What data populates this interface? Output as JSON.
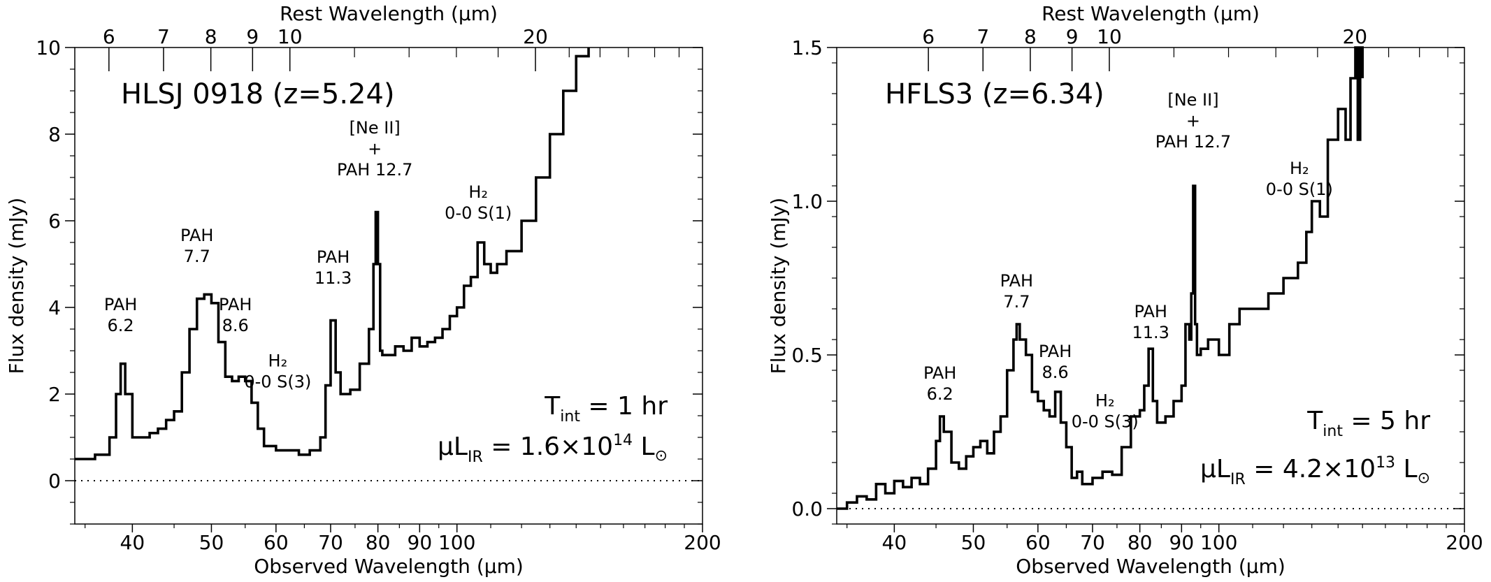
{
  "chart_data": [
    {
      "type": "line",
      "title": "HLSJ 0918 (z=5.24)",
      "xlabel": "Observed Wavelength (μm)",
      "ylabel": "Flux density (mJy)",
      "top_xlabel": "Rest Wavelength (μm)",
      "xscale": "log",
      "xlim": [
        34,
        200
      ],
      "ylim": [
        -1,
        10
      ],
      "xticks": [
        40,
        50,
        60,
        70,
        80,
        90,
        100,
        200
      ],
      "yticks": [
        0,
        2,
        4,
        6,
        8,
        10
      ],
      "top_ticks": [
        6,
        7,
        8,
        9,
        10,
        20
      ],
      "redshift": 5.24,
      "zero_line": "dotted",
      "annotations": [
        {
          "lines": [
            "PAH",
            "6.2"
          ],
          "x": 38.7,
          "y": 3.45
        },
        {
          "lines": [
            "PAH",
            "7.7"
          ],
          "x": 48.0,
          "y": 5.05
        },
        {
          "lines": [
            "PAH",
            "8.6"
          ],
          "x": 53.5,
          "y": 3.45
        },
        {
          "lines": [
            "H₂",
            "0-0 S(3)"
          ],
          "x": 60.3,
          "y": 2.15
        },
        {
          "lines": [
            "PAH",
            "11.3"
          ],
          "x": 70.5,
          "y": 4.55
        },
        {
          "lines": [
            "[Ne II]",
            "+",
            "PAH 12.7"
          ],
          "x": 79.3,
          "y": 7.05
        },
        {
          "lines": [
            "H₂",
            "0-0 S(1)"
          ],
          "x": 106.2,
          "y": 6.05
        }
      ],
      "info": {
        "tint": "T",
        "tint_sub": "int",
        "tint_value": " = 1 hr",
        "lum_prefix": "μL",
        "lum_sub": "IR",
        "lum_mid": " = 1.6×10",
        "lum_exp": "14",
        "lum_unit": " L",
        "sun_symbol": "⊙"
      },
      "series": [
        {
          "x": [
            34,
            36,
            37.5,
            38.2,
            38.7,
            39.2,
            40,
            41,
            42,
            43,
            44,
            45,
            46,
            47,
            48,
            49,
            50,
            51,
            52,
            53,
            54,
            55,
            56,
            57,
            58,
            60,
            62,
            64,
            66,
            68,
            69,
            70,
            71,
            72,
            74,
            76,
            78,
            79,
            79.5,
            80,
            80.5,
            81,
            82,
            84,
            86,
            88,
            90,
            92,
            94,
            96,
            98,
            100,
            102,
            104,
            106,
            108,
            110,
            112,
            115,
            120,
            125,
            130,
            135,
            140,
            145
          ],
          "y": [
            0.5,
            0.6,
            1.0,
            2.0,
            2.7,
            2.0,
            1.0,
            1.0,
            1.1,
            1.2,
            1.4,
            1.6,
            2.5,
            3.5,
            4.2,
            4.3,
            4.1,
            3.2,
            2.4,
            2.3,
            2.4,
            2.3,
            1.8,
            1.2,
            0.8,
            0.7,
            0.7,
            0.6,
            0.7,
            1.0,
            2.2,
            3.7,
            2.5,
            2.0,
            2.1,
            2.7,
            3.5,
            5.0,
            6.2,
            5.0,
            3.0,
            2.9,
            2.9,
            3.1,
            3.0,
            3.3,
            3.1,
            3.2,
            3.3,
            3.5,
            3.8,
            4.0,
            4.5,
            4.7,
            5.5,
            5.0,
            4.8,
            5.0,
            5.3,
            6.0,
            7.0,
            8.0,
            9.0,
            9.8,
            10
          ]
        }
      ]
    },
    {
      "type": "line",
      "title": "HFLS3 (z=6.34)",
      "xlabel": "Observed Wavelength (μm)",
      "ylabel": "Flux density (mJy)",
      "top_xlabel": "Rest Wavelength (μm)",
      "xscale": "log",
      "xlim": [
        34,
        200
      ],
      "ylim": [
        -0.05,
        1.5
      ],
      "xticks": [
        40,
        50,
        60,
        70,
        80,
        90,
        100,
        200
      ],
      "yticks": [
        0.0,
        0.5,
        1.0,
        1.5
      ],
      "ytick_labels": [
        "0.0",
        "0.5",
        "1.0",
        "1.5"
      ],
      "top_ticks": [
        6,
        7,
        8,
        9,
        10,
        20
      ],
      "redshift": 6.34,
      "zero_line": "dotted",
      "annotations": [
        {
          "lines": [
            "PAH",
            "6.2"
          ],
          "x": 45.5,
          "y": 0.355
        },
        {
          "lines": [
            "PAH",
            "7.7"
          ],
          "x": 56.5,
          "y": 0.655
        },
        {
          "lines": [
            "PAH",
            "8.6"
          ],
          "x": 63.0,
          "y": 0.425
        },
        {
          "lines": [
            "H₂",
            "0-0 S(3)"
          ],
          "x": 72.5,
          "y": 0.265
        },
        {
          "lines": [
            "PAH",
            "11.3"
          ],
          "x": 82.5,
          "y": 0.555
        },
        {
          "lines": [
            "[Ne II]",
            "+",
            "PAH 12.7"
          ],
          "x": 93.0,
          "y": 1.175
        },
        {
          "lines": [
            "H₂",
            "0-0 S(1)"
          ],
          "x": 125.5,
          "y": 1.02
        }
      ],
      "info": {
        "tint": "T",
        "tint_sub": "int",
        "tint_value": " = 5 hr",
        "lum_prefix": "μL",
        "lum_sub": "IR",
        "lum_mid": " = 4.2×10",
        "lum_exp": "13",
        "lum_unit": " L",
        "sun_symbol": "⊙"
      },
      "series": [
        {
          "x": [
            34,
            35,
            36,
            37,
            38,
            39,
            40,
            41,
            42,
            43,
            44,
            45,
            45.5,
            46,
            47,
            48,
            49,
            50,
            51,
            52,
            53,
            54,
            55,
            56,
            56.5,
            57,
            58,
            59,
            60,
            61,
            62,
            63,
            64,
            65,
            66,
            67,
            68,
            70,
            72,
            74,
            76,
            78,
            80,
            81,
            82,
            83,
            84,
            86,
            88,
            90,
            91,
            92,
            92.5,
            93,
            93.5,
            94,
            95,
            97,
            100,
            103,
            106,
            110,
            115,
            120,
            125,
            128,
            130,
            133,
            136,
            140,
            143,
            145,
            147,
            148,
            149,
            150
          ],
          "y": [
            0.0,
            0.02,
            0.04,
            0.03,
            0.08,
            0.05,
            0.09,
            0.07,
            0.1,
            0.08,
            0.13,
            0.22,
            0.3,
            0.25,
            0.15,
            0.13,
            0.17,
            0.2,
            0.22,
            0.18,
            0.25,
            0.3,
            0.45,
            0.55,
            0.6,
            0.55,
            0.5,
            0.38,
            0.35,
            0.32,
            0.3,
            0.38,
            0.28,
            0.2,
            0.1,
            0.12,
            0.08,
            0.1,
            0.12,
            0.11,
            0.2,
            0.3,
            0.32,
            0.4,
            0.52,
            0.35,
            0.28,
            0.3,
            0.35,
            0.4,
            0.6,
            0.55,
            0.7,
            1.05,
            0.6,
            0.5,
            0.52,
            0.55,
            0.5,
            0.6,
            0.65,
            0.65,
            0.7,
            0.75,
            0.8,
            0.9,
            1.0,
            0.95,
            1.2,
            1.3,
            1.2,
            1.4,
            1.55,
            1.2,
            1.6,
            1.4
          ]
        }
      ]
    }
  ]
}
